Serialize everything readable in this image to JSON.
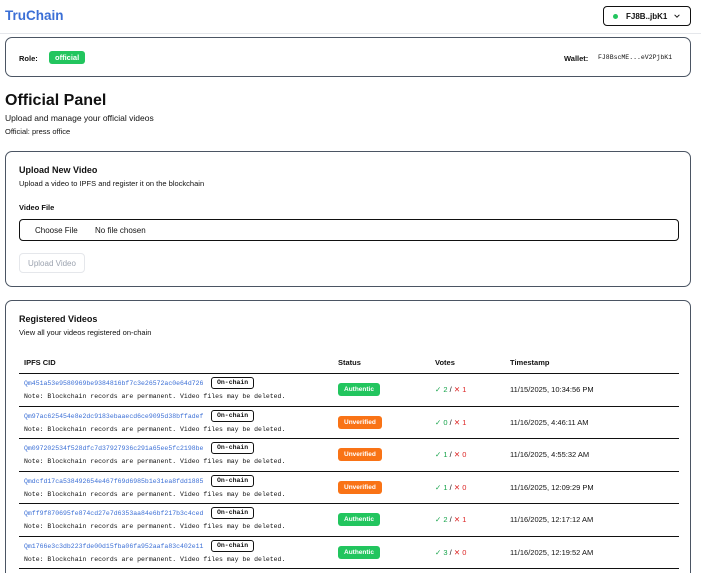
{
  "header": {
    "brand": "TruChain",
    "wallet_short": "FJ8B..jbK1"
  },
  "role": {
    "label": "Role:",
    "value": "official",
    "wallet_label": "Wallet:",
    "wallet_addr": "FJ8BscME...eV2PjbK1"
  },
  "panel": {
    "title": "Official Panel",
    "subtitle": "Upload and manage your official videos",
    "official": "Official: press office"
  },
  "upload": {
    "title": "Upload New Video",
    "description": "Upload a video to IPFS and register it on the blockchain",
    "field_label": "Video File",
    "choose_label": "Choose File",
    "no_file": "No file chosen",
    "button": "Upload Video"
  },
  "videos": {
    "title": "Registered Videos",
    "description": "View all your videos registered on-chain",
    "columns": [
      "IPFS CID",
      "Status",
      "Votes",
      "Timestamp"
    ],
    "rows": [
      {
        "cid": "Qm451a53e9580969be9384816bf7c3e26572ac0e64d726",
        "onchain": "On-chain",
        "note": "Note: Blockchain records are permanent. Video files may be deleted.",
        "status": "Authentic",
        "status_color": "#22c55e",
        "up": "✓ 2",
        "sep": "/",
        "down": "✕ 1",
        "ts": "11/15/2025, 10:34:56 PM"
      },
      {
        "cid": "Qm97ac625454e8e2dc9183ebaaecd6ce9095d38bffadef",
        "onchain": "On-chain",
        "note": "Note: Blockchain records are permanent. Video files may be deleted.",
        "status": "Unverified",
        "status_color": "#f97316",
        "up": "✓ 0",
        "sep": "/",
        "down": "✕ 1",
        "ts": "11/16/2025, 4:46:11 AM"
      },
      {
        "cid": "Qm097202534f528dfc7d37927936c291a65ee5fc2198be",
        "onchain": "On-chain",
        "note": "Note: Blockchain records are permanent. Video files may be deleted.",
        "status": "Unverified",
        "status_color": "#f97316",
        "up": "✓ 1",
        "sep": "/",
        "down": "✕ 0",
        "ts": "11/16/2025, 4:55:32 AM"
      },
      {
        "cid": "Qmdcfd17ca538492654e467f69d6985b1e31ea8fdd1885",
        "onchain": "On-chain",
        "note": "Note: Blockchain records are permanent. Video files may be deleted.",
        "status": "Unverified",
        "status_color": "#f97316",
        "up": "✓ 1",
        "sep": "/",
        "down": "✕ 0",
        "ts": "11/16/2025, 12:09:29 PM"
      },
      {
        "cid": "Qmff9f870695fe874cd27e7d6353aa84e6bf217b3c4ced",
        "onchain": "On-chain",
        "note": "Note: Blockchain records are permanent. Video files may be deleted.",
        "status": "Authentic",
        "status_color": "#22c55e",
        "up": "✓ 2",
        "sep": "/",
        "down": "✕ 1",
        "ts": "11/16/2025, 12:17:12 AM"
      },
      {
        "cid": "Qm1766e3c3db223fde00d15fba06fa952aafa83c402e11",
        "onchain": "On-chain",
        "note": "Note: Blockchain records are permanent. Video files may be deleted.",
        "status": "Authentic",
        "status_color": "#22c55e",
        "up": "✓ 3",
        "sep": "/",
        "down": "✕ 0",
        "ts": "11/16/2025, 12:19:52 AM"
      }
    ]
  }
}
